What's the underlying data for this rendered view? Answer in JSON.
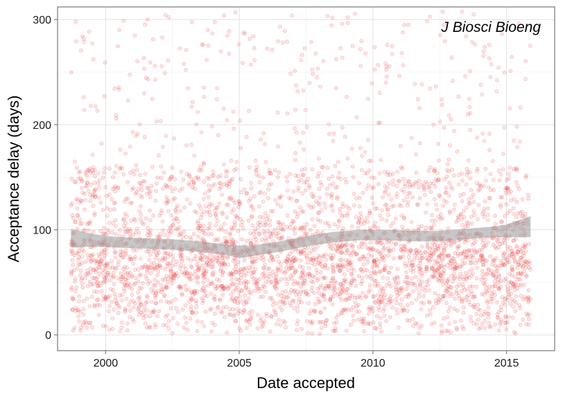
{
  "chart_data": {
    "type": "scatter",
    "annotation": "J Biosci Bioeng",
    "xlabel": "Date accepted",
    "ylabel": "Acceptance delay (days)",
    "x_ticks": [
      2000,
      2005,
      2010,
      2015
    ],
    "y_ticks": [
      0,
      100,
      200,
      300
    ],
    "xlim": [
      1998.2,
      2016.8
    ],
    "ylim": [
      -15,
      312
    ],
    "grid": true,
    "point_color": "#e8393a",
    "point_opacity": 0.15,
    "data_range": {
      "x": [
        1998.7,
        2015.9
      ]
    },
    "point_density": "roughly 4000 points, densest between 20 and 120 days, sparse above 150 days",
    "smooth_series": {
      "x": [
        1998.7,
        1999.5,
        2000.5,
        2001.5,
        2002.5,
        2003.5,
        2004.5,
        2005.0,
        2005.5,
        2006.5,
        2007.5,
        2008.5,
        2009.5,
        2010.5,
        2011.5,
        2012.5,
        2013.5,
        2014.5,
        2015.0,
        2015.9
      ],
      "y": [
        92,
        90,
        88,
        87,
        86,
        84,
        81,
        79,
        80,
        84,
        89,
        93,
        95,
        95,
        94,
        94,
        96,
        98,
        99,
        103
      ],
      "band_halfwidth": [
        9,
        6,
        5,
        5,
        5,
        5,
        5,
        6,
        5,
        5,
        5,
        5,
        5,
        5,
        5,
        5,
        5,
        5,
        6,
        10
      ],
      "color": "#999999"
    }
  }
}
